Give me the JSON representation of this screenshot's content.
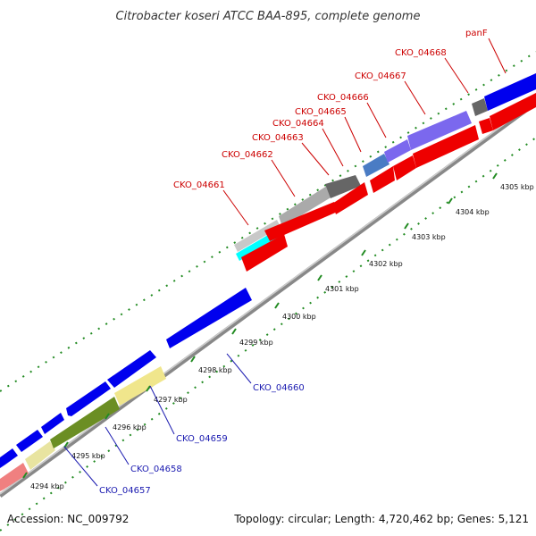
{
  "title": "Citrobacter koseri ATCC BAA-895, complete genome",
  "accession": "Accession: NC_009792",
  "topology": "Topology: circular; Length: 4,720,462 bp; Genes: 5,121",
  "colors": {
    "forward_gene": "#0000ee",
    "reverse_gene": "#ee0000",
    "backbone": "#999999",
    "tick": "#228b22",
    "forward_label": "#1a1ab0",
    "reverse_label": "#cc0000"
  },
  "scale_ticks": [
    {
      "kbp": 4294,
      "label": "4294 kbp"
    },
    {
      "kbp": 4295,
      "label": "4295 kbp"
    },
    {
      "kbp": 4296,
      "label": "4296 kbp"
    },
    {
      "kbp": 4297,
      "label": "4297 kbp"
    },
    {
      "kbp": 4298,
      "label": "4298 kbp"
    },
    {
      "kbp": 4299,
      "label": "4299 kbp"
    },
    {
      "kbp": 4300,
      "label": "4300 kbp"
    },
    {
      "kbp": 4301,
      "label": "4301 kbp"
    },
    {
      "kbp": 4302,
      "label": "4302 kbp"
    },
    {
      "kbp": 4303,
      "label": "4303 kbp"
    },
    {
      "kbp": 4304,
      "label": "4304 kbp"
    },
    {
      "kbp": 4305,
      "label": "4305 kbp"
    }
  ],
  "forward_labels": [
    {
      "name": "CKO_04657",
      "strand": "forward"
    },
    {
      "name": "CKO_04658",
      "strand": "forward"
    },
    {
      "name": "CKO_04659",
      "strand": "forward"
    },
    {
      "name": "CKO_04660",
      "strand": "forward"
    }
  ],
  "reverse_labels": [
    {
      "name": "CKO_04661",
      "strand": "reverse"
    },
    {
      "name": "CKO_04662",
      "strand": "reverse"
    },
    {
      "name": "CKO_04663",
      "strand": "reverse"
    },
    {
      "name": "CKO_04664",
      "strand": "reverse"
    },
    {
      "name": "CKO_04665",
      "strand": "reverse"
    },
    {
      "name": "CKO_04666",
      "strand": "reverse"
    },
    {
      "name": "CKO_04667",
      "strand": "reverse"
    },
    {
      "name": "panF",
      "strand": "reverse"
    },
    {
      "name": "CKO_04668",
      "strand": "reverse"
    }
  ]
}
